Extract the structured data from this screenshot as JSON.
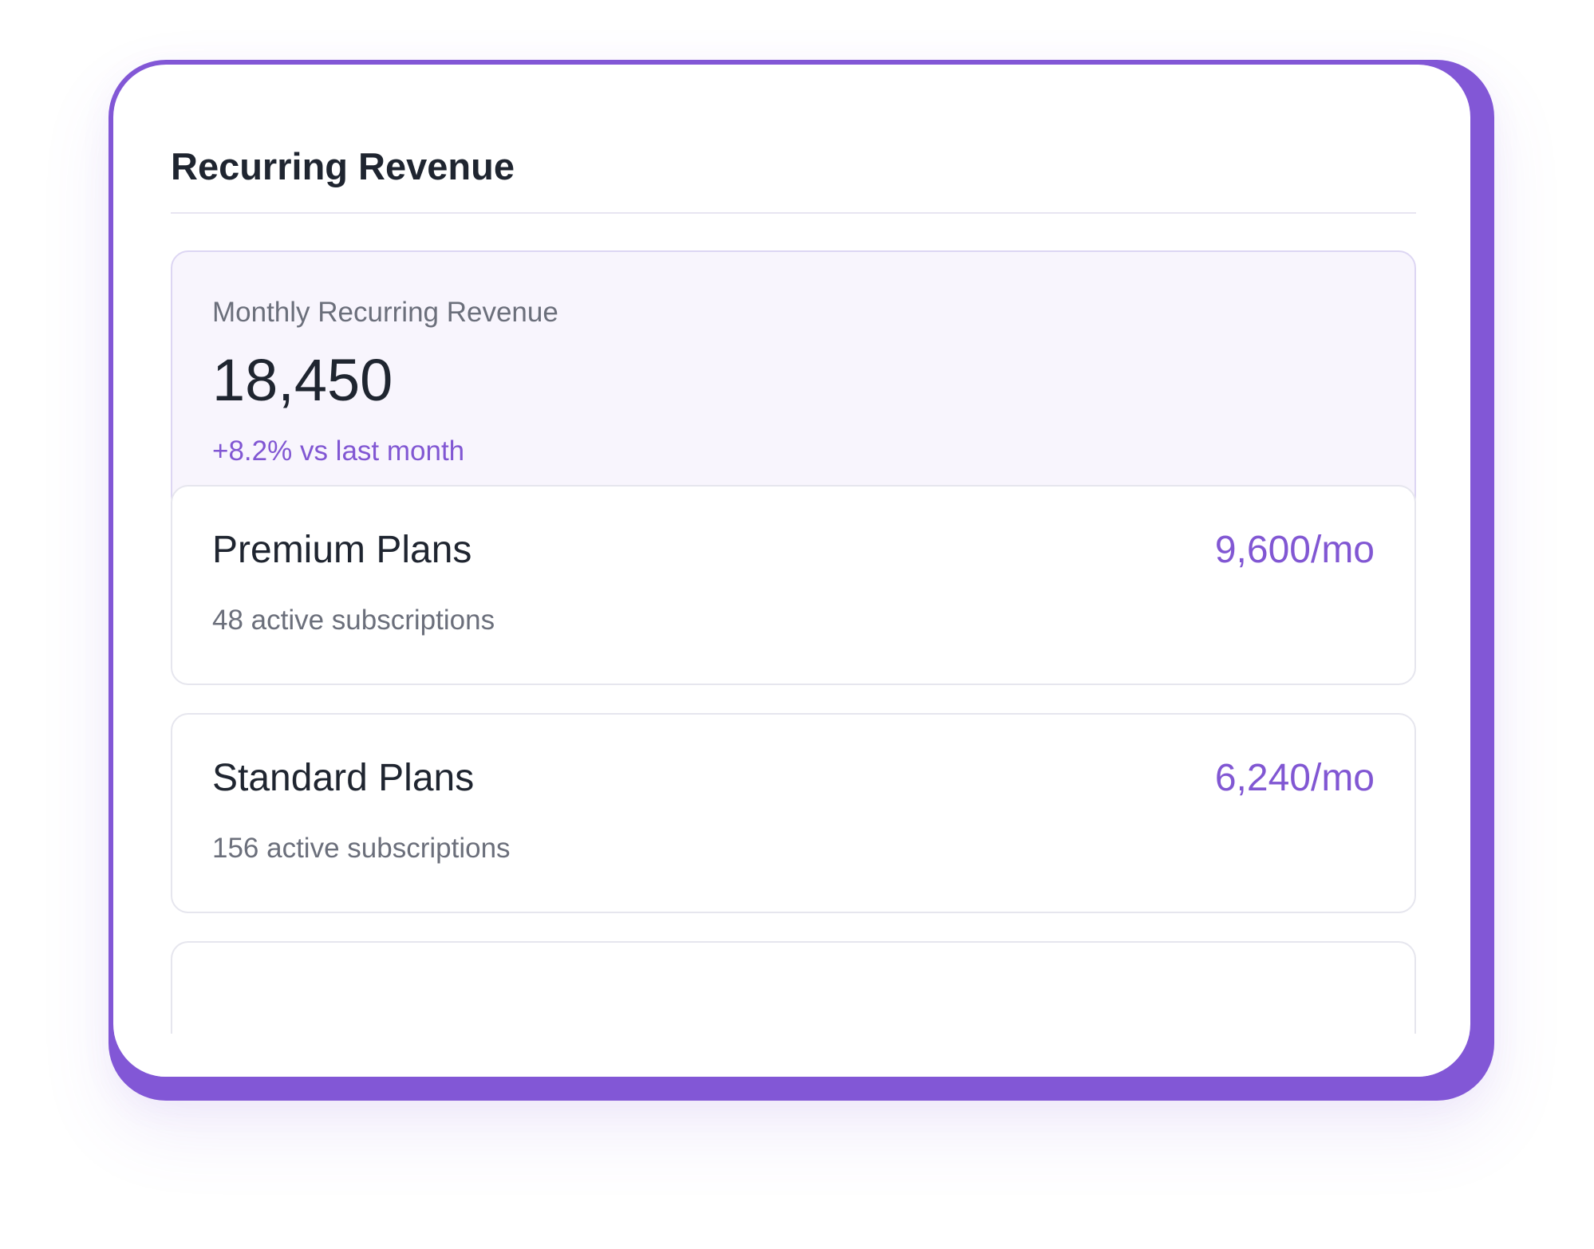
{
  "widget": {
    "title": "Recurring Revenue",
    "accent_color": "#8257d6"
  },
  "mrr": {
    "label": "Monthly Recurring Revenue",
    "value": "18,450",
    "change": "+8.2% vs last month"
  },
  "plans": [
    {
      "name": "Premium Plans",
      "amount": "9,600/mo",
      "subscriptions": "48 active subscriptions"
    },
    {
      "name": "Standard Plans",
      "amount": "6,240/mo",
      "subscriptions": "156 active subscriptions"
    }
  ]
}
